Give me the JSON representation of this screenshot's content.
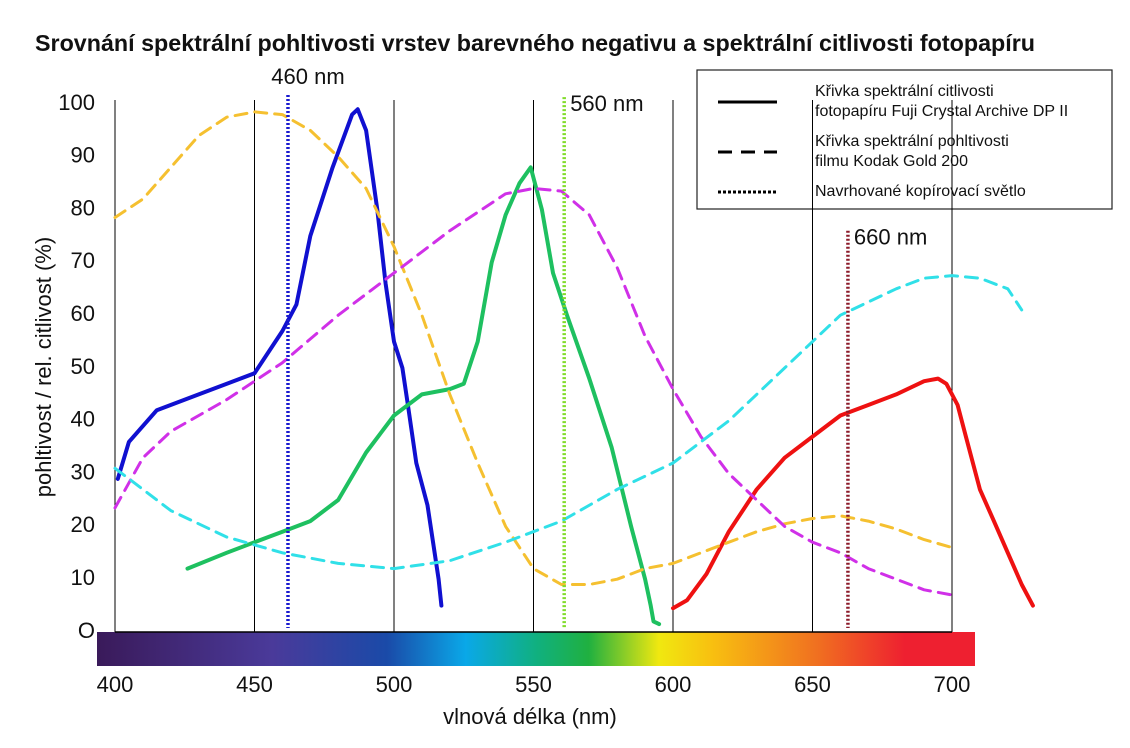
{
  "chart_data": {
    "type": "line",
    "title": "Srovnání spektrální pohltivosti vrstev barevného negativu a spektrální citlivosti fotopapíru",
    "x_label": "vlnová délka (nm)",
    "y_label": "pohltivost / rel. citlivost (%)",
    "xlim": [
      400,
      700
    ],
    "ylim": [
      0,
      100
    ],
    "xticks": [
      400,
      450,
      500,
      550,
      600,
      650,
      700
    ],
    "yticks": [
      {
        "value": 0,
        "label": "O"
      },
      10,
      20,
      30,
      40,
      50,
      60,
      70,
      80,
      90,
      100
    ],
    "grid": "x",
    "series": [
      {
        "color": "#1010d0",
        "style": "solid",
        "x": [
          401,
          405,
          415,
          430,
          450,
          460,
          465,
          470,
          478,
          485,
          487,
          490,
          494,
          497,
          500,
          503,
          505,
          508,
          512,
          516,
          517
        ],
        "values": [
          29,
          36,
          42,
          45,
          49,
          57,
          62,
          75,
          88,
          98,
          99,
          95,
          80,
          66,
          55,
          50,
          43,
          32,
          24,
          10,
          5
        ]
      },
      {
        "color": "#1ec060",
        "style": "solid",
        "x": [
          426,
          440,
          450,
          460,
          470,
          480,
          490,
          500,
          510,
          520,
          525,
          530,
          535,
          540,
          545,
          549,
          553,
          557,
          562,
          570,
          578,
          585,
          590,
          592,
          593,
          595
        ],
        "values": [
          12,
          15,
          17,
          19,
          21,
          25,
          34,
          41,
          45,
          46,
          47,
          55,
          70,
          79,
          85,
          88,
          80,
          68,
          60,
          48,
          35,
          20,
          10,
          5,
          2,
          1.5
        ]
      },
      {
        "color": "#ee1111",
        "style": "solid",
        "x": [
          600,
          605,
          612,
          620,
          630,
          640,
          650,
          660,
          670,
          680,
          690,
          695,
          698,
          702,
          705,
          710,
          715,
          720,
          725,
          729
        ],
        "values": [
          4.5,
          6,
          11,
          19,
          27,
          33,
          37,
          41,
          43,
          45,
          47.5,
          48,
          47,
          43,
          37,
          27,
          21,
          15,
          9,
          5
        ]
      },
      {
        "color": "#f5c030",
        "style": "dashed",
        "x": [
          400,
          410,
          420,
          430,
          440,
          450,
          460,
          470,
          480,
          490,
          500,
          510,
          520,
          530,
          540,
          550,
          560,
          570,
          580,
          590,
          600,
          610,
          620,
          630,
          640,
          650,
          660,
          670,
          680,
          690,
          700
        ],
        "values": [
          78.5,
          82,
          88,
          94,
          97.5,
          98.5,
          98,
          95,
          90,
          84,
          73,
          60,
          45,
          32,
          20,
          12,
          9,
          9,
          10,
          12,
          13,
          15,
          17,
          19,
          20.5,
          21.5,
          22,
          21,
          19.5,
          17.5,
          16
        ]
      },
      {
        "color": "#d030e8",
        "style": "dashed",
        "x": [
          400,
          410,
          420,
          440,
          460,
          480,
          500,
          520,
          540,
          550,
          560,
          570,
          580,
          590,
          600,
          610,
          620,
          630,
          640,
          650,
          660,
          670,
          680,
          690,
          700
        ],
        "values": [
          23.5,
          33,
          38,
          44,
          51,
          60,
          68,
          76,
          83,
          84,
          83.5,
          79,
          69,
          56,
          46,
          37,
          30,
          25,
          20,
          17,
          15,
          12,
          10,
          8,
          7
        ]
      },
      {
        "color": "#30e0e8",
        "style": "dashed",
        "x": [
          400,
          410,
          420,
          440,
          460,
          480,
          500,
          520,
          540,
          560,
          580,
          600,
          620,
          640,
          660,
          680,
          690,
          700,
          710,
          720,
          725
        ],
        "values": [
          31,
          27,
          23,
          18,
          15,
          13,
          12,
          13.5,
          17,
          21,
          27,
          32,
          40,
          50,
          60,
          65,
          67,
          67.5,
          67,
          65,
          61
        ]
      }
    ],
    "annotations": [
      {
        "label": "460 nm",
        "x": 462,
        "top": 101.7,
        "color": "#1a1ad0"
      },
      {
        "label": "560 nm",
        "x": 561,
        "top": 101.3,
        "color": "#80dc2a"
      },
      {
        "label": "660 nm",
        "x": 662.7,
        "top": 76,
        "color": "#8b1a2a"
      }
    ],
    "legend": [
      {
        "style": "solid",
        "lines": [
          "Křivka spektrální citlivosti",
          "fotopapíru Fuji Crystal Archive DP II"
        ]
      },
      {
        "style": "dashed",
        "lines": [
          "Křivka spektrální pohltivosti",
          "filmu Kodak Gold 200"
        ]
      },
      {
        "style": "dotted",
        "lines": [
          "Navrhované kopírovací světlo"
        ]
      }
    ]
  }
}
